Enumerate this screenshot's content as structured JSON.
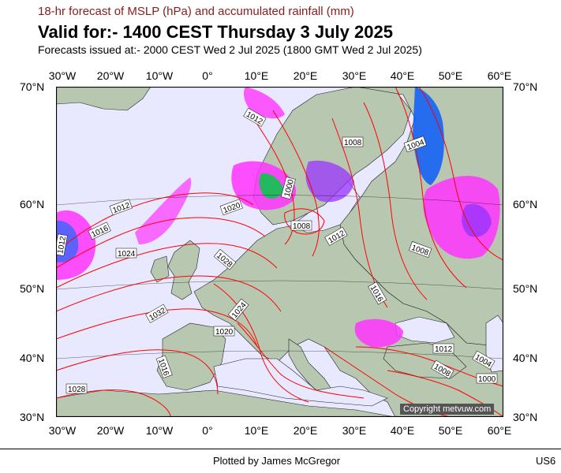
{
  "header": {
    "subtitle": "18-hr forecast of MSLP (hPa) and accumulated rainfall (mm)",
    "title": "Valid for:- 1400 CEST Thursday 3 July 2025",
    "issued": "Forecasts issued at:- 2000 CEST Wed 2 Jul 2025 (1800 GMT Wed 2 Jul 2025)"
  },
  "map": {
    "lon_labels": [
      "30°W",
      "20°W",
      "10°W",
      "0°",
      "10°E",
      "20°E",
      "30°E",
      "40°E",
      "50°E",
      "60°E"
    ],
    "lat_labels": [
      "70°N",
      "60°N",
      "50°N",
      "40°N",
      "30°N"
    ],
    "isobar_labels": [
      "1012",
      "1008",
      "1004",
      "1000",
      "1008",
      "1012",
      "1016",
      "1020",
      "1024",
      "1028",
      "1032",
      "1016",
      "1020",
      "1024",
      "1028",
      "1012",
      "1008",
      "1004",
      "1000",
      "1012",
      "1016",
      "1008",
      "1012"
    ],
    "copyright": "Copyright metvuw.com",
    "colors": {
      "isobar": "#ff0000",
      "rain_light": "#ff33ff",
      "rain_mid": "#9933ff",
      "rain_heavy": "#0055ff",
      "ocean": "#e8e8ff",
      "land": "#b8c8b0"
    }
  },
  "footer": {
    "plotted_by": "Plotted by James McGregor",
    "code": "US6"
  }
}
